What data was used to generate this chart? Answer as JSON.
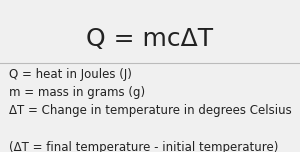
{
  "background_color": "#f0f0f0",
  "title_formula": "Q = mcΔT",
  "title_fontsize": 18,
  "lines": [
    "Q = heat in Joules (J)",
    "m = mass in grams (g)",
    "ΔT = Change in temperature in degrees Celsius",
    "",
    "(ΔT = final temperature - initial temperature)"
  ],
  "lines_fontsize": 8.5,
  "text_color": "#222222",
  "divider_color": "#bbbbbb",
  "fig_width": 3.0,
  "fig_height": 1.52,
  "dpi": 100
}
